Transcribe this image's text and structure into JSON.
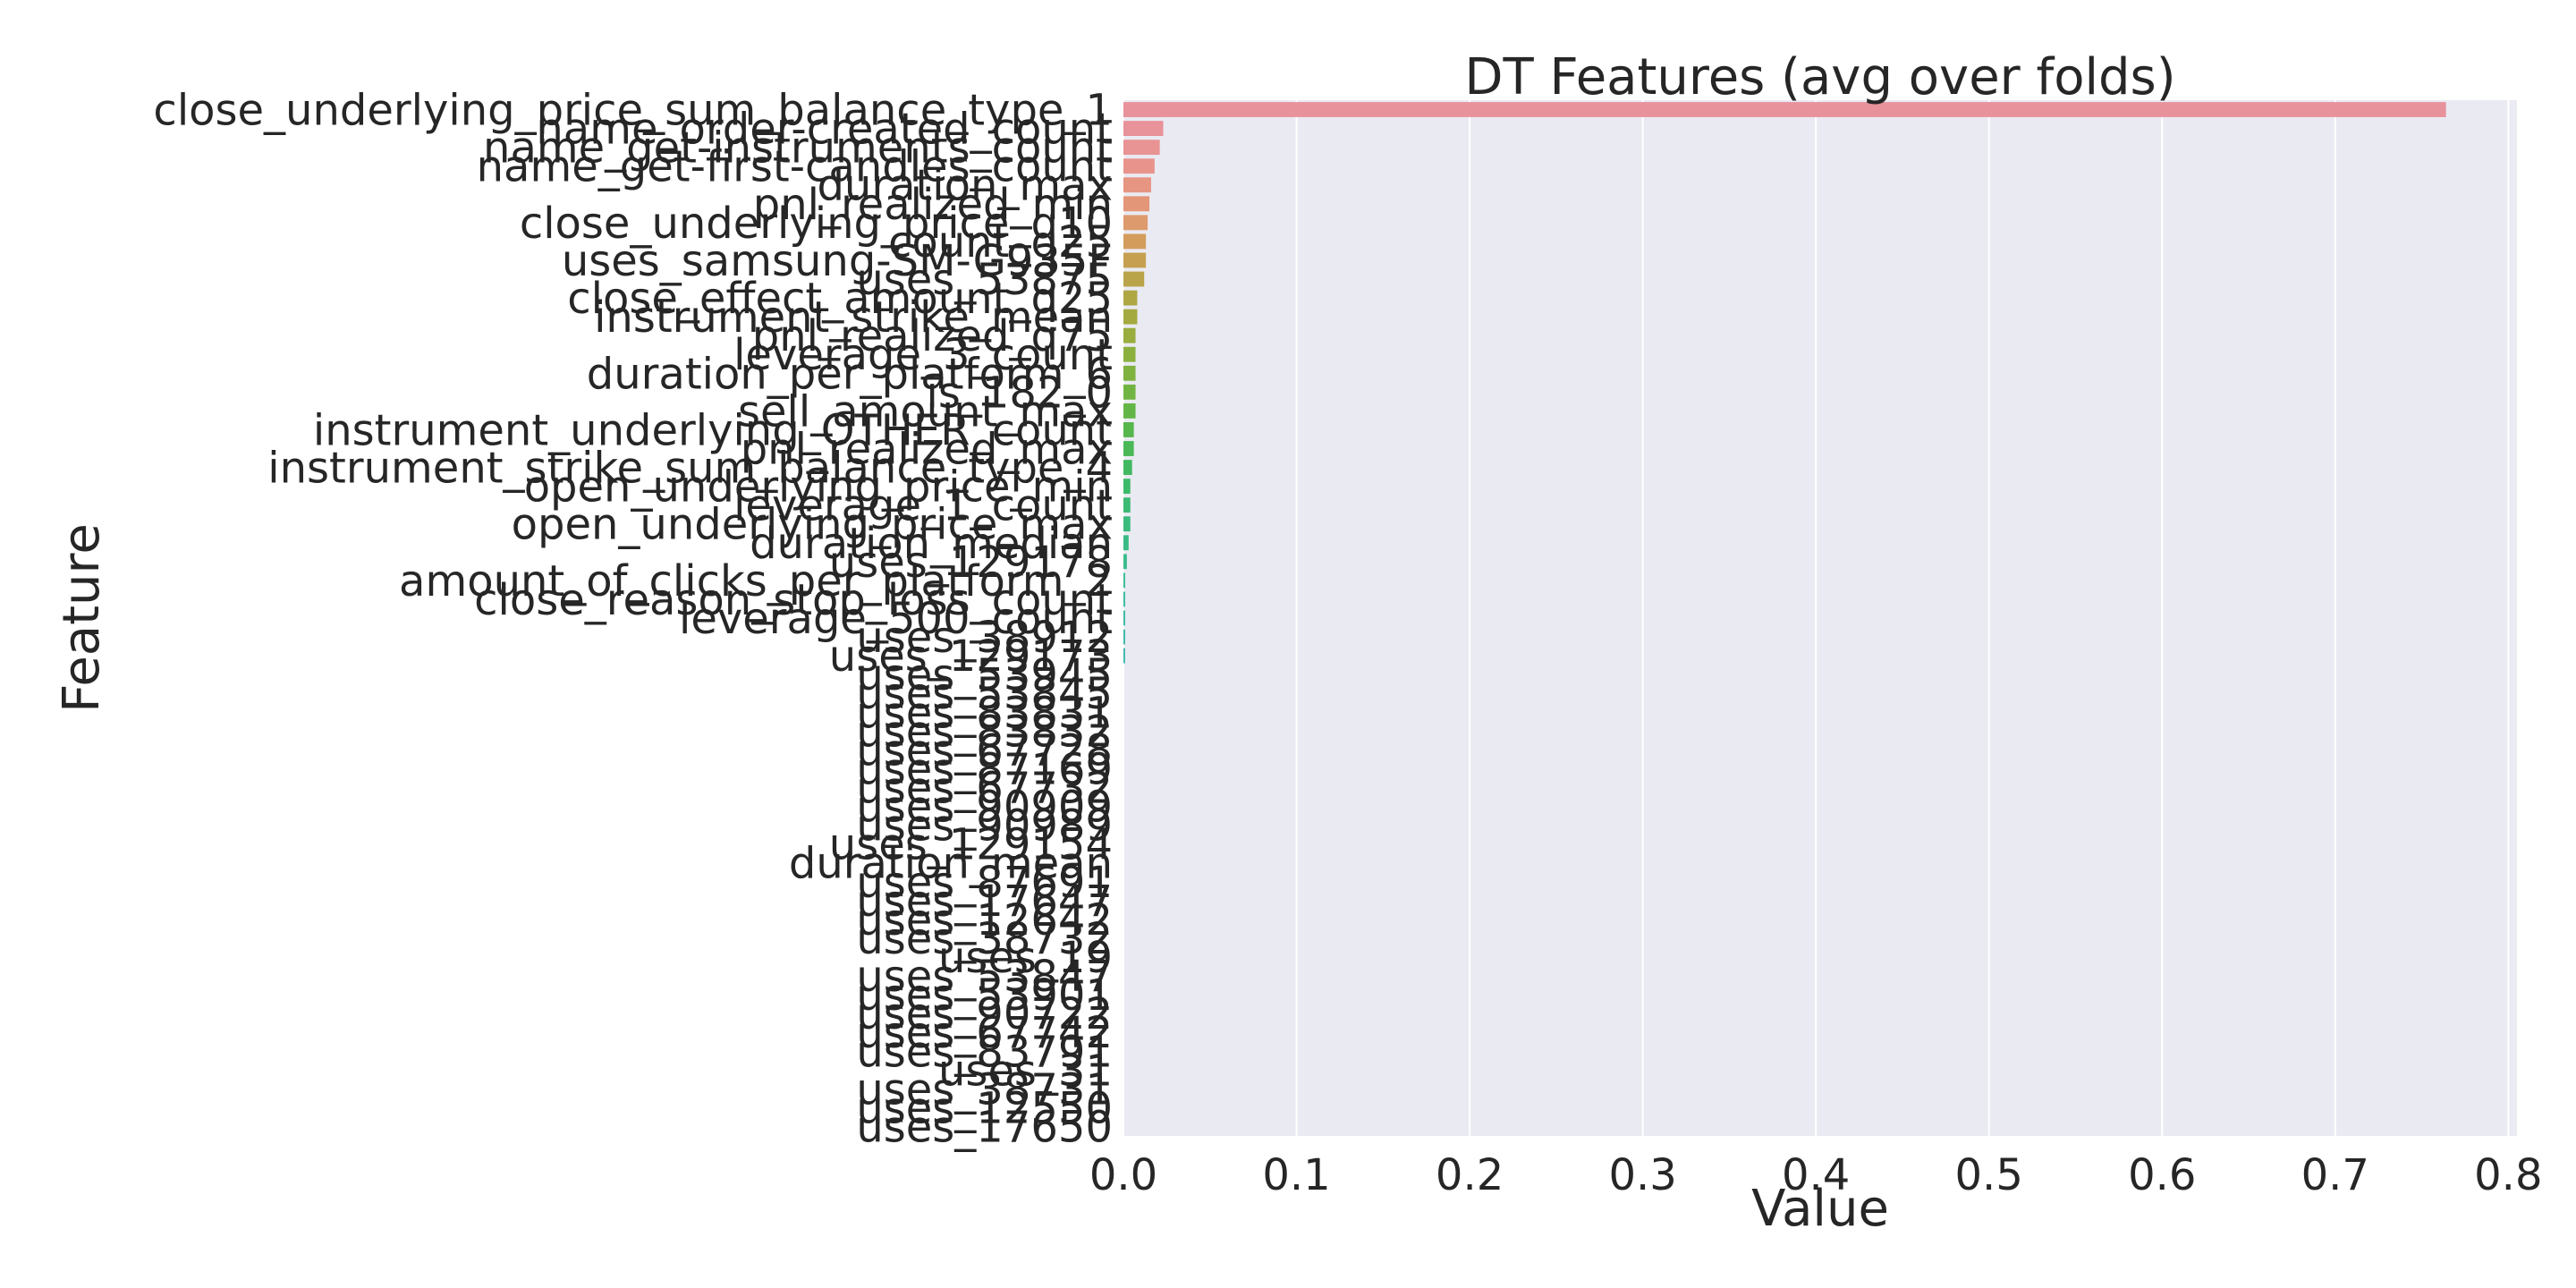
{
  "chart_data": {
    "type": "bar",
    "orientation": "horizontal",
    "title": "DT Features (avg over folds)",
    "xlabel": "Value",
    "ylabel": "Feature",
    "xlim": [
      0.0,
      0.805
    ],
    "xticks": [
      "0.0",
      "0.1",
      "0.2",
      "0.3",
      "0.4",
      "0.5",
      "0.6",
      "0.7",
      "0.8"
    ],
    "grid": true,
    "categories": [
      "close_underlying_price_sum_balance_type_1",
      "name_order-created_count",
      "name_get-instruments_count",
      "name_get-first-candles_count",
      "duration_max",
      "pnl_realized_min",
      "close_underlying_price_q10",
      "count_q25",
      "uses_samsung-SM-G935F",
      "uses_53875",
      "close_effect_amount_q25",
      "instrument_strike_mean",
      "pnl_realized_q75",
      "leverage_3_count",
      "duration_per_platform_6",
      "is_182_0",
      "sell_amount_max",
      "instrument_underlying_OTHER_count",
      "pnl_realized_max",
      "instrument_strike_sum_balance_type_4",
      "open_underlying_price_min",
      "leverage_1_count",
      "open_underlying_price_max",
      "duration_median",
      "uses_129178",
      "amount_of_clicks_per_platform_2",
      "close_reason_stop_loss_count",
      "leverage_500_count",
      "uses_38912",
      "uses_129173",
      "uses_53945",
      "uses_53845",
      "uses_83831",
      "uses_83832",
      "uses_67728",
      "uses_87169",
      "uses_67732",
      "uses_90909",
      "uses_90989",
      "uses_129154",
      "duration_mean",
      "uses_87691",
      "uses_17647",
      "uses_12642",
      "uses_38732",
      "uses_19",
      "uses_53847",
      "uses_53901",
      "uses_90722",
      "uses_67742",
      "uses_83791",
      "uses_31",
      "uses_38731",
      "uses_12550",
      "uses_17650"
    ],
    "values": [
      0.764,
      0.023,
      0.021,
      0.018,
      0.016,
      0.015,
      0.014,
      0.013,
      0.013,
      0.012,
      0.008,
      0.008,
      0.007,
      0.007,
      0.007,
      0.007,
      0.007,
      0.006,
      0.006,
      0.005,
      0.004,
      0.004,
      0.004,
      0.003,
      0.002,
      0.001,
      0.001,
      0.001,
      0.001,
      0.001,
      0.0,
      0.0,
      0.0,
      0.0,
      0.0,
      0.0,
      0.0,
      0.0,
      0.0,
      0.0,
      0.0,
      0.0,
      0.0,
      0.0,
      0.0,
      0.0,
      0.0,
      0.0,
      0.0,
      0.0,
      0.0,
      0.0,
      0.0,
      0.0,
      0.0
    ],
    "colors": [
      "#e8929c",
      "#e8929a",
      "#e89394",
      "#e8948c",
      "#e69582",
      "#e39678",
      "#dd9a6c",
      "#d39c5c",
      "#c6a050",
      "#b9a44a",
      "#aea744",
      "#a4aa40",
      "#98ad3e",
      "#8cb03e",
      "#7fb23f",
      "#72b442",
      "#63b646",
      "#56b74c",
      "#4ab856",
      "#42b960",
      "#3dba6a",
      "#3bba74",
      "#3abb7c",
      "#39bb84",
      "#39bb8c",
      "#3abb94",
      "#3bba9b",
      "#3cbaa2",
      "#3db9a9",
      "#3eb8b0",
      "#3fb8b6",
      "#40b7bc",
      "#42b6c2",
      "#43b4c8",
      "#45b3cf",
      "#47b2d6",
      "#4ab0dc",
      "#4eaee3",
      "#53abe9",
      "#5aa8ee",
      "#63a4f2",
      "#6ca0f4",
      "#789cf5",
      "#8497f5",
      "#9093f4",
      "#9b8ff3",
      "#a68bf1",
      "#b087ee",
      "#ba83ea",
      "#c47fe5",
      "#cd7cdf",
      "#d57ad8",
      "#dc79cf",
      "#e279c6",
      "#e67abd"
    ]
  }
}
